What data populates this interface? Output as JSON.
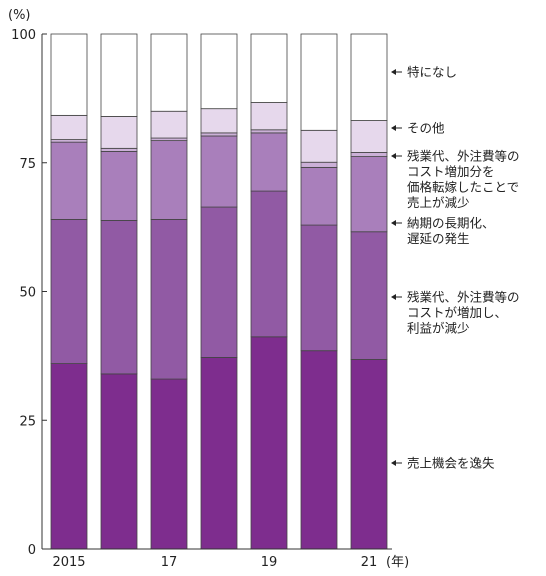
{
  "chart_data": {
    "type": "bar",
    "stacked": true,
    "ylabel": "(%)",
    "xlabel": "(年)",
    "ylim": [
      0,
      100
    ],
    "yticks": [
      0,
      25,
      50,
      75,
      100
    ],
    "categories": [
      "2015",
      "16",
      "17",
      "18",
      "19",
      "20",
      "21"
    ],
    "x_tick_labels": [
      "2015",
      "",
      "17",
      "",
      "19",
      "",
      "21"
    ],
    "series": [
      {
        "name": "売上機会を逸失",
        "color": "#7e2d8e",
        "values": [
          36.0,
          34.0,
          33.0,
          37.2,
          41.2,
          38.5,
          36.8
        ]
      },
      {
        "name": "残業代、外注費等のコストが増加し、利益が減少",
        "color": "#915aa4",
        "values": [
          28.0,
          29.8,
          31.0,
          29.2,
          28.3,
          24.4,
          24.8
        ]
      },
      {
        "name": "納期の長期化、遅延の発生",
        "color": "#a97fbb",
        "values": [
          15.0,
          13.4,
          15.3,
          13.8,
          11.3,
          11.2,
          14.6
        ]
      },
      {
        "name": "残業代、外注費等のコスト増加分を価格転嫁したことで売上が減少",
        "color": "#cbb0d7",
        "values": [
          0.5,
          0.6,
          0.5,
          0.6,
          0.6,
          1.0,
          0.8
        ]
      },
      {
        "name": "その他",
        "color": "#e6d8ec",
        "values": [
          4.7,
          6.2,
          5.2,
          4.7,
          5.3,
          6.2,
          6.2
        ]
      },
      {
        "name": "特になし",
        "color": "#ffffff",
        "values": [
          15.8,
          16.0,
          15.0,
          14.5,
          13.3,
          18.7,
          16.8
        ]
      }
    ],
    "legend": {
      "placement": "right",
      "entries": [
        {
          "series_index": 5,
          "lines": [
            "特になし"
          ]
        },
        {
          "series_index": 4,
          "lines": [
            "その他"
          ]
        },
        {
          "series_index": 3,
          "lines": [
            "残業代、外注費等の",
            "コスト増加分を",
            "価格転嫁したことで",
            "売上が減少"
          ]
        },
        {
          "series_index": 2,
          "lines": [
            "納期の長期化、",
            "遅延の発生"
          ]
        },
        {
          "series_index": 1,
          "lines": [
            "残業代、外注費等の",
            "コストが増加し、",
            "利益が減少"
          ]
        },
        {
          "series_index": 0,
          "lines": [
            "売上機会を逸失"
          ]
        }
      ]
    },
    "grid": false
  }
}
